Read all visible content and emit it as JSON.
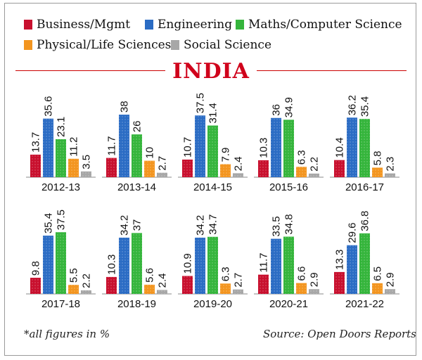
{
  "title": "INDIA",
  "footnote": "*all figures in %",
  "source": "Source: Open Doors Reports",
  "colors": {
    "business": "#c8102e",
    "engineering": "#2b6cc4",
    "maths": "#35b53c",
    "physical": "#f3951f",
    "social": "#a7a7a7",
    "title": "#d0021b"
  },
  "legend": [
    {
      "label": "Business/Mgmt",
      "color": "#c8102e"
    },
    {
      "label": "Engineering",
      "color": "#2b6cc4"
    },
    {
      "label": "Maths/Computer Science",
      "color": "#35b53c"
    },
    {
      "label": "Physical/Life Sciences",
      "color": "#f3951f"
    },
    {
      "label": "Social Science",
      "color": "#a7a7a7"
    }
  ],
  "chart_data": {
    "type": "bar",
    "title": "INDIA",
    "unit": "%",
    "categories": [
      "2012-13",
      "2013-14",
      "2014-15",
      "2015-16",
      "2016-17",
      "2017-18",
      "2018-19",
      "2019-20",
      "2020-21",
      "2021-22"
    ],
    "series": [
      {
        "name": "Business/Mgmt",
        "values": [
          13.7,
          11.7,
          10.7,
          10.3,
          10.4,
          9.8,
          10.3,
          10.9,
          11.7,
          13.3
        ]
      },
      {
        "name": "Engineering",
        "values": [
          35.6,
          38,
          37.5,
          36,
          36.2,
          35.4,
          34.2,
          34.2,
          33.5,
          29.6
        ]
      },
      {
        "name": "Maths/Computer Science",
        "values": [
          23.1,
          26,
          31.4,
          34.9,
          35.4,
          37.5,
          37,
          34.7,
          34.8,
          36.8
        ]
      },
      {
        "name": "Physical/Life Sciences",
        "values": [
          11.2,
          10,
          7.9,
          6.3,
          5.8,
          5.5,
          5.6,
          6.3,
          6.6,
          6.5
        ]
      },
      {
        "name": "Social Science",
        "values": [
          3.5,
          2.7,
          2.4,
          2.2,
          2.3,
          2.2,
          2.4,
          2.7,
          2.9,
          2.9
        ]
      }
    ],
    "value_labels": [
      [
        "13.7",
        "35.6",
        "23.1",
        "11.2",
        "3.5"
      ],
      [
        "11.7",
        "38",
        "26",
        "10",
        "2.7"
      ],
      [
        "10.7",
        "37.5",
        "31.4",
        "7.9",
        "2.4"
      ],
      [
        "10.3",
        "36",
        "34.9",
        "6.3",
        "2.2"
      ],
      [
        "10.4",
        "36.2",
        "35.4",
        "5.8",
        "2.3"
      ],
      [
        "9.8",
        "35.4",
        "37.5",
        "5.5",
        "2.2"
      ],
      [
        "10.3",
        "34.2",
        "37",
        "5.6",
        "2.4"
      ],
      [
        "10.9",
        "34.2",
        "34.7",
        "6.3",
        "2.7"
      ],
      [
        "11.7",
        "33.5",
        "34.8",
        "6.6",
        "2.9"
      ],
      [
        "13.3",
        "29.6",
        "36.8",
        "6.5",
        "2.9"
      ]
    ],
    "layout": "2 rows x 5 small-multiple panels",
    "ylim": [
      0,
      40
    ]
  }
}
